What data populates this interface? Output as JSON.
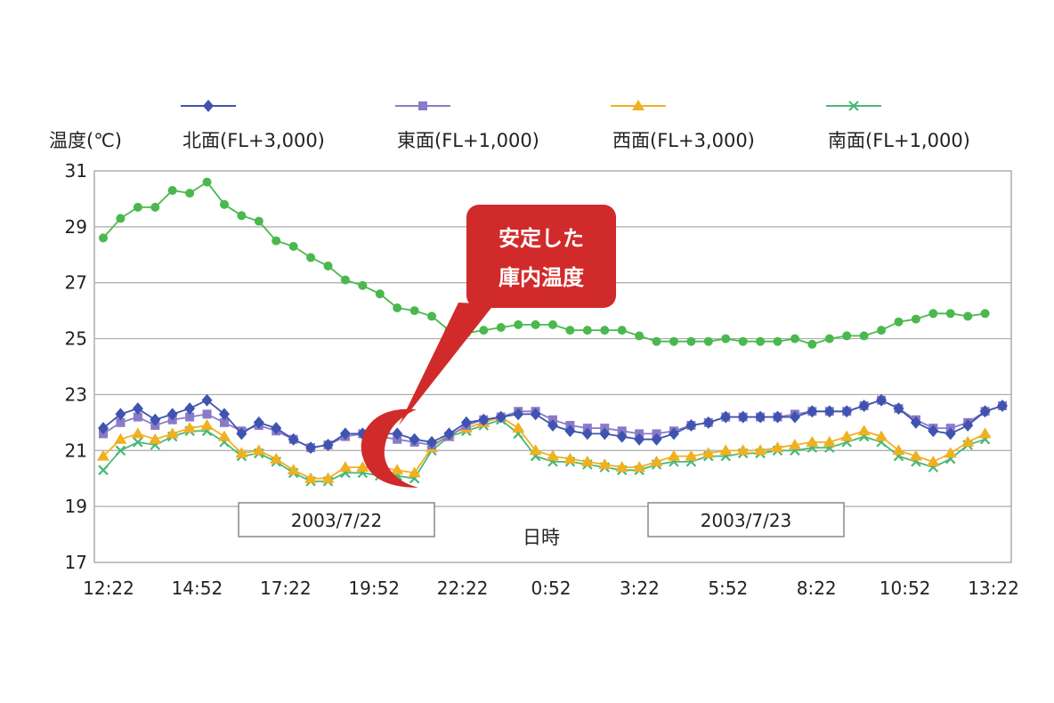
{
  "chart_data": {
    "type": "line",
    "ylabel": "温度(℃)",
    "xlabel": "日時",
    "ylim": [
      17,
      31
    ],
    "yticks": [
      17,
      19,
      21,
      23,
      25,
      27,
      29,
      31
    ],
    "xtick_labels": [
      "12:22",
      "14:52",
      "17:22",
      "19:52",
      "22:22",
      "0:52",
      "3:22",
      "5:52",
      "8:22",
      "10:52",
      "13:22"
    ],
    "grid": true,
    "legend_position": "top",
    "series": [
      {
        "name": "北面(FL+3,000)",
        "color": "#3f53b0",
        "marker": "diamond",
        "values": [
          21.8,
          22.3,
          22.5,
          22.1,
          22.3,
          22.5,
          22.8,
          22.3,
          21.6,
          22.0,
          21.8,
          21.4,
          21.1,
          21.2,
          21.6,
          21.6,
          21.6,
          21.6,
          21.4,
          21.3,
          21.6,
          22.0,
          22.1,
          22.2,
          22.3,
          22.3,
          21.9,
          21.7,
          21.6,
          21.6,
          21.5,
          21.4,
          21.4,
          21.6,
          21.9,
          22.0,
          22.2,
          22.2,
          22.2,
          22.2,
          22.2,
          22.4,
          22.4,
          22.4,
          22.6,
          22.8,
          22.5,
          22.0,
          21.7,
          21.6,
          21.9,
          22.4,
          22.6
        ]
      },
      {
        "name": "東面(FL+1,000)",
        "color": "#8a7ac8",
        "marker": "square",
        "values": [
          21.6,
          22.0,
          22.2,
          21.9,
          22.1,
          22.2,
          22.3,
          22.0,
          21.7,
          21.9,
          21.7,
          21.4,
          21.1,
          21.2,
          21.5,
          21.6,
          21.5,
          21.4,
          21.3,
          21.2,
          21.5,
          21.9,
          22.1,
          22.2,
          22.4,
          22.4,
          22.1,
          21.9,
          21.8,
          21.8,
          21.7,
          21.6,
          21.6,
          21.7,
          21.9,
          22.0,
          22.2,
          22.2,
          22.2,
          22.2,
          22.3,
          22.4,
          22.4,
          22.4,
          22.6,
          22.8,
          22.5,
          22.1,
          21.8,
          21.8,
          22.0,
          22.4,
          22.6
        ]
      },
      {
        "name": "西面(FL+3,000)",
        "color": "#f0b020",
        "marker": "triangle",
        "values": [
          20.8,
          21.4,
          21.6,
          21.4,
          21.6,
          21.8,
          21.9,
          21.5,
          20.9,
          21.0,
          20.7,
          20.3,
          20.0,
          20.0,
          20.4,
          20.4,
          20.4,
          20.3,
          20.2,
          21.1,
          21.6,
          21.8,
          22.0,
          22.2,
          21.8,
          21.0,
          20.8,
          20.7,
          20.6,
          20.5,
          20.4,
          20.4,
          20.6,
          20.8,
          20.8,
          20.9,
          21.0,
          21.0,
          21.0,
          21.1,
          21.2,
          21.3,
          21.3,
          21.5,
          21.7,
          21.5,
          21.0,
          20.8,
          20.6,
          20.9,
          21.3,
          21.6
        ]
      },
      {
        "name": "南面(FL+1,000)",
        "color": "#4ab876",
        "marker": "cross",
        "values": [
          20.3,
          21.0,
          21.3,
          21.2,
          21.5,
          21.7,
          21.7,
          21.3,
          20.8,
          20.9,
          20.6,
          20.2,
          19.9,
          19.9,
          20.2,
          20.2,
          20.1,
          20.1,
          20.0,
          21.0,
          21.5,
          21.7,
          21.9,
          22.1,
          21.6,
          20.8,
          20.6,
          20.6,
          20.5,
          20.4,
          20.3,
          20.3,
          20.5,
          20.6,
          20.6,
          20.8,
          20.8,
          20.9,
          20.9,
          21.0,
          21.0,
          21.1,
          21.1,
          21.3,
          21.5,
          21.3,
          20.8,
          20.6,
          20.4,
          20.7,
          21.2,
          21.4
        ]
      },
      {
        "name": "",
        "color": "#4ab84e",
        "marker": "circle",
        "values": [
          28.6,
          29.3,
          29.7,
          29.7,
          30.3,
          30.2,
          30.6,
          29.8,
          29.4,
          29.2,
          28.5,
          28.3,
          27.9,
          27.6,
          27.1,
          26.9,
          26.6,
          26.1,
          26.0,
          25.8,
          25.3,
          25.2,
          25.3,
          25.4,
          25.5,
          25.5,
          25.5,
          25.3,
          25.3,
          25.3,
          25.3,
          25.1,
          24.9,
          24.9,
          24.9,
          24.9,
          25.0,
          24.9,
          24.9,
          24.9,
          25.0,
          24.8,
          25.0,
          25.1,
          25.1,
          25.3,
          25.6,
          25.7,
          25.9,
          25.9,
          25.8,
          25.9
        ]
      }
    ],
    "annotations": {
      "callout": [
        "安定した",
        "庫内温度"
      ],
      "date_labels": [
        "2003/7/22",
        "2003/7/23"
      ]
    }
  }
}
